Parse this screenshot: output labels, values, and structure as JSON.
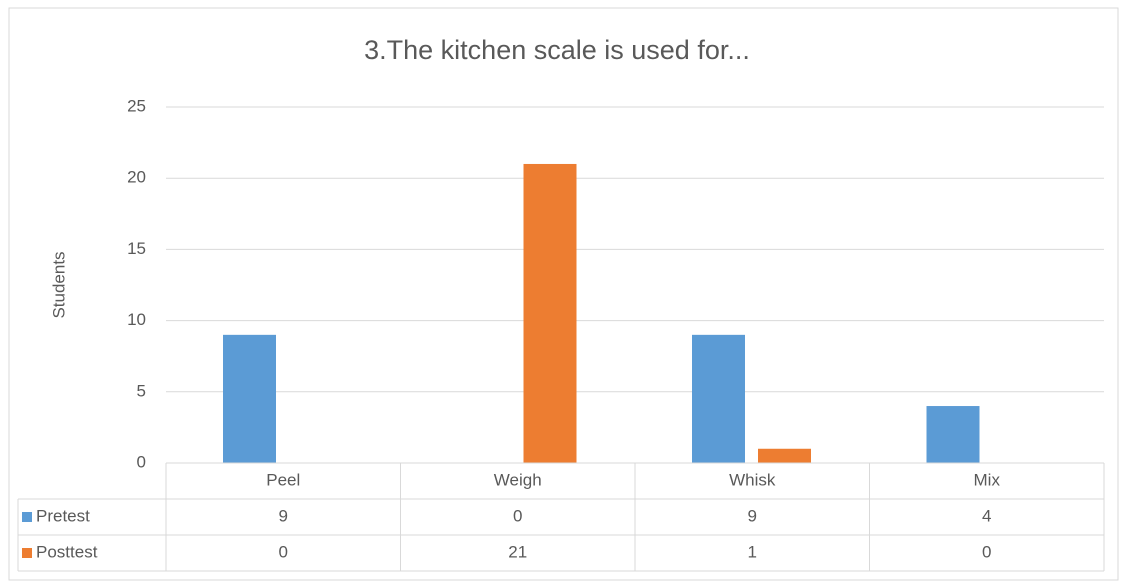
{
  "chart_data": {
    "type": "bar",
    "title": "3.The kitchen scale is used for...",
    "y_label": "Students",
    "categories": [
      "Peel",
      "Weigh",
      "Whisk",
      "Mix"
    ],
    "series": [
      {
        "name": "Pretest",
        "color": "#5b9bd5",
        "values": [
          9,
          0,
          9,
          4
        ]
      },
      {
        "name": "Posttest",
        "color": "#ed7d31",
        "values": [
          0,
          21,
          1,
          0
        ]
      }
    ],
    "ylim": [
      0,
      25
    ],
    "yticks": [
      0,
      5,
      10,
      15,
      20,
      25
    ],
    "grid": true,
    "data_table": true
  }
}
